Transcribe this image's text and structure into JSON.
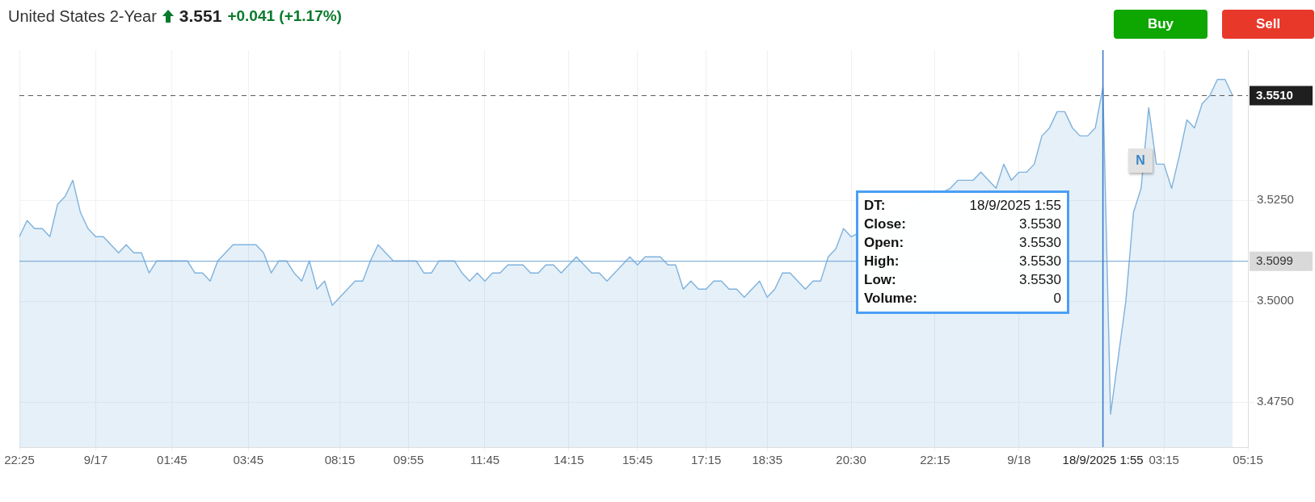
{
  "chart_data": {
    "type": "area",
    "title": "United States 2-Year",
    "subtitle": "3.551",
    "annotations": [
      "+0.041 (+1.17%)",
      "Buy",
      "Sell",
      "N",
      "DT:",
      "18/9/2025 1:55",
      "Close:",
      "3.5530",
      "Open:",
      "3.5530",
      "High:",
      "3.5530",
      "Low:",
      "3.5530",
      "Volume:",
      "0"
    ],
    "categories": [
      "22:25",
      null,
      null,
      null,
      null,
      null,
      null,
      null,
      null,
      null,
      "9/17",
      null,
      null,
      null,
      null,
      null,
      null,
      null,
      null,
      null,
      "01:45",
      null,
      null,
      null,
      null,
      null,
      null,
      null,
      null,
      null,
      "03:45",
      null,
      null,
      null,
      null,
      null,
      null,
      null,
      null,
      null,
      null,
      null,
      "08:15",
      null,
      null,
      null,
      null,
      null,
      null,
      null,
      null,
      "09:55",
      null,
      null,
      null,
      null,
      null,
      null,
      null,
      null,
      null,
      "11:45",
      null,
      null,
      null,
      null,
      null,
      null,
      null,
      null,
      null,
      null,
      "14:15",
      null,
      null,
      null,
      null,
      null,
      null,
      null,
      null,
      "15:45",
      null,
      null,
      null,
      null,
      null,
      null,
      null,
      null,
      "17:15",
      null,
      null,
      null,
      null,
      null,
      null,
      null,
      "18:35",
      null,
      null,
      null,
      null,
      null,
      null,
      null,
      null,
      null,
      null,
      "20:30",
      null,
      null,
      null,
      null,
      null,
      null,
      null,
      null,
      null,
      null,
      "22:15",
      null,
      null,
      null,
      null,
      null,
      null,
      null,
      null,
      null,
      null,
      "9/18",
      null,
      null,
      null,
      null,
      null,
      null,
      null,
      null,
      null,
      null,
      "18/9/2025 1:55",
      null,
      null,
      null,
      null,
      null,
      null,
      null,
      "03:15",
      null,
      null,
      null,
      null,
      null,
      null,
      null,
      null,
      null,
      null,
      "05:15"
    ],
    "values": [
      3.516,
      3.52,
      3.518,
      3.518,
      3.516,
      3.524,
      3.526,
      3.53,
      3.522,
      3.518,
      3.516,
      3.516,
      3.514,
      3.512,
      3.514,
      3.512,
      3.512,
      3.507,
      3.51,
      3.51,
      3.51,
      3.51,
      3.51,
      3.507,
      3.507,
      3.505,
      3.51,
      3.512,
      3.514,
      3.514,
      3.514,
      3.514,
      3.512,
      3.507,
      3.51,
      3.51,
      3.507,
      3.505,
      3.51,
      3.503,
      3.505,
      3.499,
      3.501,
      3.503,
      3.505,
      3.505,
      3.51,
      3.514,
      3.512,
      3.51,
      3.51,
      3.51,
      3.51,
      3.507,
      3.507,
      3.51,
      3.51,
      3.51,
      3.507,
      3.505,
      3.507,
      3.505,
      3.507,
      3.507,
      3.509,
      3.509,
      3.509,
      3.507,
      3.507,
      3.509,
      3.509,
      3.507,
      3.509,
      3.511,
      3.509,
      3.507,
      3.507,
      3.505,
      3.507,
      3.509,
      3.511,
      3.509,
      3.511,
      3.511,
      3.511,
      3.509,
      3.509,
      3.503,
      3.505,
      3.503,
      3.503,
      3.505,
      3.505,
      3.503,
      3.503,
      3.501,
      3.503,
      3.505,
      3.501,
      3.503,
      3.507,
      3.507,
      3.505,
      3.503,
      3.505,
      3.505,
      3.511,
      3.513,
      3.518,
      3.516,
      null,
      null,
      null,
      null,
      null,
      null,
      null,
      null,
      null,
      null,
      null,
      null,
      3.528,
      3.53,
      3.53,
      3.53,
      3.532,
      3.53,
      3.528,
      3.534,
      3.53,
      3.532,
      3.532,
      3.534,
      3.541,
      3.543,
      3.547,
      3.547,
      3.543,
      3.541,
      3.541,
      3.543,
      3.553,
      3.472,
      3.486,
      3.5,
      3.522,
      3.528,
      3.548,
      3.534,
      3.534,
      3.528,
      3.536,
      3.545,
      3.543,
      3.549,
      3.551,
      3.555,
      3.555,
      3.551,
      null,
      null
    ],
    "color": "#7fb2dd",
    "ylim": [
      3.4638,
      3.5623
    ],
    "yticks": [
      {
        "value": 3.475,
        "label": "3.4750"
      },
      {
        "value": 3.5,
        "label": "3.5000"
      },
      {
        "value": 3.525,
        "label": "3.5250"
      }
    ],
    "ref_lines": [
      {
        "axis": "y",
        "value": 3.551,
        "label": "3.5510",
        "color": "#555555",
        "line_style": "dashed"
      },
      {
        "axis": "y",
        "value": 3.5099,
        "label": "3.5099",
        "color": "#6a9fd4"
      },
      {
        "axis": "x",
        "value": "18/9/2025 1:55",
        "color": "#3d7cc9"
      }
    ],
    "grid": true,
    "legend": false,
    "marker": "none"
  }
}
